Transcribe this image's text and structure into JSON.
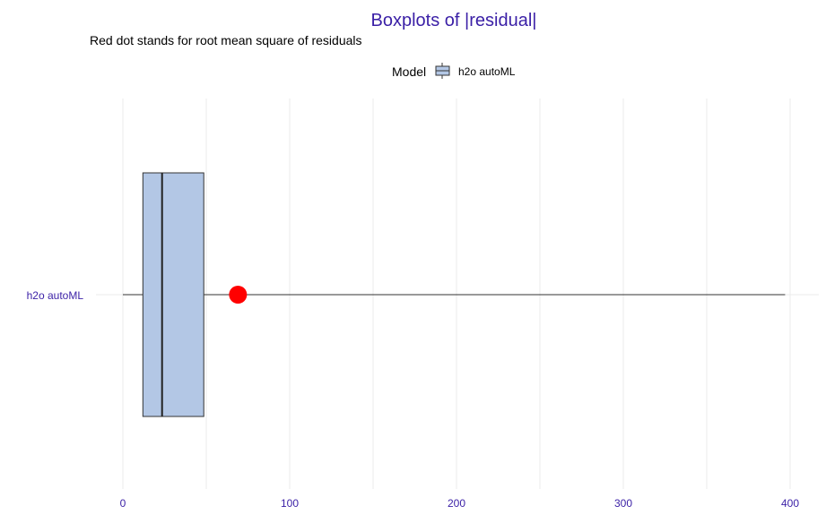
{
  "chart_data": {
    "type": "boxplot",
    "title": "Boxplots of |residual|",
    "subtitle": "Red dot stands for root mean square of residuals",
    "legend": {
      "title": "Model",
      "entries": [
        "h2o autoML"
      ],
      "position": "top"
    },
    "orientation": "horizontal",
    "xlim": [
      -5,
      415
    ],
    "x_ticks": [
      0,
      100,
      200,
      300,
      400
    ],
    "x_tick_labels": [
      "0",
      "100",
      "200",
      "300",
      "400"
    ],
    "grid": true,
    "series": [
      {
        "name": "h2o autoML",
        "min": 0,
        "q1": 12,
        "median": 23.5,
        "q3": 48.5,
        "max": 397,
        "rms": 69,
        "fill": "#b3c7e5",
        "rms_color": "#ff0000"
      }
    ]
  }
}
